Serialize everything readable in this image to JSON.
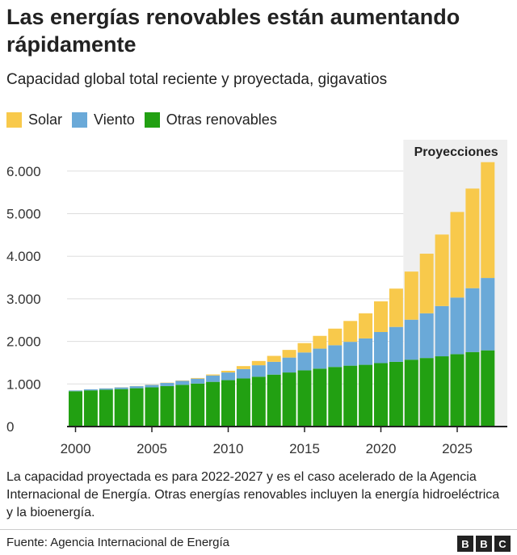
{
  "title": "Las energías renovables están aumentando rápidamente",
  "subtitle": "Capacidad global total reciente y proyectada, gigavatios",
  "note": "La capacidad proyectada es para 2022-2027 y es el caso acelerado de la Agencia Internacional de Energía. Otras energías renovables incluyen la energía hidroeléctrica y la bioenergía.",
  "source": "Fuente: Agencia Internacional de Energía",
  "logo": [
    "B",
    "B",
    "C"
  ],
  "chart_data": {
    "type": "bar",
    "stacked": true,
    "title": "Las energías renovables están aumentando rápidamente",
    "xlabel": "",
    "ylabel": "Gigavatios",
    "ylim": [
      0,
      6200
    ],
    "yticks": [
      0,
      1000,
      2000,
      3000,
      4000,
      5000,
      6000
    ],
    "ytick_labels": [
      "0",
      "1.000",
      "2.000",
      "3.000",
      "4.000",
      "5.000",
      "6.000"
    ],
    "xtick_labels": [
      "2000",
      "2005",
      "2010",
      "2015",
      "2020",
      "2025"
    ],
    "annotation": "Proyecciones",
    "projection_start": 2022,
    "legend_position": "top-left",
    "x": [
      2000,
      2001,
      2002,
      2003,
      2004,
      2005,
      2006,
      2007,
      2008,
      2009,
      2010,
      2011,
      2012,
      2013,
      2014,
      2015,
      2016,
      2017,
      2018,
      2019,
      2020,
      2021,
      2022,
      2023,
      2024,
      2025,
      2026,
      2027
    ],
    "series": [
      {
        "name": "Otras renovables",
        "color": "#22a012",
        "values": [
          830,
          850,
          865,
          880,
          900,
          920,
          950,
          980,
          1010,
          1050,
          1090,
          1130,
          1170,
          1220,
          1270,
          1320,
          1360,
          1400,
          1430,
          1450,
          1490,
          1520,
          1570,
          1610,
          1650,
          1700,
          1750,
          1790
        ]
      },
      {
        "name": "Viento",
        "color": "#6aa9d8",
        "values": [
          17,
          24,
          31,
          39,
          48,
          59,
          74,
          94,
          115,
          150,
          180,
          220,
          270,
          300,
          350,
          420,
          470,
          510,
          560,
          620,
          730,
          820,
          940,
          1050,
          1180,
          1330,
          1500,
          1700
        ]
      },
      {
        "name": "Solar",
        "color": "#f8c94b",
        "values": [
          1,
          1,
          2,
          3,
          4,
          5,
          7,
          9,
          15,
          23,
          40,
          70,
          100,
          140,
          180,
          220,
          300,
          390,
          490,
          590,
          720,
          900,
          1130,
          1400,
          1680,
          2010,
          2340,
          2720
        ]
      }
    ]
  }
}
